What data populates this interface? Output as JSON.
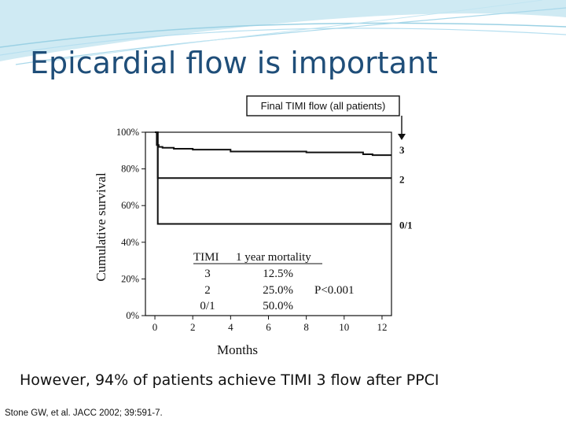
{
  "slide": {
    "title": "Epicardial flow is important",
    "caption": "However, 94% of patients achieve TIMI 3 flow after PPCI",
    "citation": "Stone GW, et al. JACC 2002; 39:591-7."
  },
  "colors": {
    "title": "#1f4e79",
    "line": "#111111",
    "bg_accent": "#cfeaf3"
  },
  "chart_data": {
    "type": "line",
    "ylabel": "Cumulative survival",
    "xlabel": "Months",
    "xlim": [
      -0.5,
      12.5
    ],
    "ylim": [
      0,
      100
    ],
    "x_ticks": [
      0,
      2,
      4,
      6,
      8,
      10,
      12
    ],
    "y_ticks": [
      0,
      20,
      40,
      60,
      80,
      100
    ],
    "y_tick_labels": [
      "0%",
      "20%",
      "40%",
      "60%",
      "80%",
      "100%"
    ],
    "callout": "Final TIMI flow (all patients)",
    "series": [
      {
        "name": "3",
        "x": [
          0,
          0.1,
          0.2,
          0.4,
          1.0,
          2.0,
          4.0,
          8.0,
          11.0,
          11.5,
          12.5
        ],
        "y": [
          100,
          93,
          92,
          91.5,
          91,
          90.5,
          89.5,
          89,
          88,
          87.5,
          87.5
        ]
      },
      {
        "name": "2",
        "x": [
          0,
          0.15,
          12.5
        ],
        "y": [
          100,
          75,
          75
        ]
      },
      {
        "name": "0/1",
        "x": [
          0,
          0.15,
          12.5
        ],
        "y": [
          100,
          50,
          50
        ]
      }
    ],
    "mortality_table": {
      "headers": [
        "TIMI",
        "1 year mortality"
      ],
      "rows": [
        [
          "3",
          "12.5%"
        ],
        [
          "2",
          "25.0%"
        ],
        [
          "0/1",
          "50.0%"
        ]
      ]
    },
    "p_value": "P<0.001"
  }
}
